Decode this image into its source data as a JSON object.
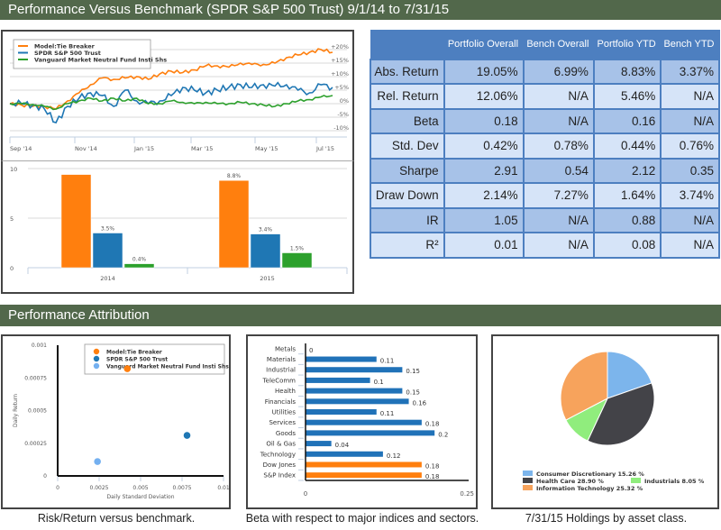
{
  "sections": {
    "performance_title": "Performance Versus Benchmark (SPDR S&P 500 Trust) 9/1/14 to 7/31/15",
    "attribution_title": "Performance Attribution"
  },
  "colors": {
    "header_green": "#52684b",
    "model": "#ff7f0e",
    "spdr": "#1f77b4",
    "vanguard": "#2ca02c",
    "table_header": "#4d7fc0"
  },
  "stats_table": {
    "headers": [
      "",
      "Portfolio Overall",
      "Bench Overall",
      "Portfolio YTD",
      "Bench YTD"
    ],
    "rows": [
      {
        "label": "Abs. Return",
        "values": [
          "19.05%",
          "6.99%",
          "8.83%",
          "3.37%"
        ]
      },
      {
        "label": "Rel. Return",
        "values": [
          "12.06%",
          "N/A",
          "5.46%",
          "N/A"
        ]
      },
      {
        "label": "Beta",
        "values": [
          "0.18",
          "N/A",
          "0.16",
          "N/A"
        ]
      },
      {
        "label": "Std. Dev",
        "values": [
          "0.42%",
          "0.78%",
          "0.44%",
          "0.76%"
        ]
      },
      {
        "label": "Sharpe",
        "values": [
          "2.91",
          "0.54",
          "2.12",
          "0.35"
        ]
      },
      {
        "label": "Draw Down",
        "values": [
          "2.14%",
          "7.27%",
          "1.64%",
          "3.74%"
        ]
      },
      {
        "label": "IR",
        "values": [
          "1.05",
          "N/A",
          "0.88",
          "N/A"
        ]
      },
      {
        "label": "R²",
        "values": [
          "0.01",
          "N/A",
          "0.08",
          "N/A"
        ]
      }
    ]
  },
  "captions": {
    "risk": "Risk/Return versus benchmark.",
    "beta": "Beta with respect to major indices and sectors.",
    "pie": "7/31/15 Holdings by asset class."
  },
  "chart_data": [
    {
      "type": "line",
      "title": "",
      "legend": [
        "Model:Tie Breaker",
        "SPDR S&P 500 Trust",
        "Vanguard Market Neutral Fund Insti Shs"
      ],
      "legend_position": "top-left",
      "x_ticks": [
        "Sep '14",
        "Nov '14",
        "Jan '15",
        "Mar '15",
        "May '15",
        "Jul '15"
      ],
      "y_ticks": [
        "+20%",
        "+15%",
        "+10%",
        "+5%",
        "0%",
        "-5%",
        "-10%"
      ],
      "ylim": [
        -10,
        20
      ],
      "series": [
        {
          "name": "Model:Tie Breaker",
          "values": [
            0,
            -0.5,
            -1,
            -1,
            -2,
            1,
            4,
            7,
            9.5,
            9,
            9.5,
            10,
            9,
            11,
            12,
            11.5,
            12.5,
            14,
            14,
            13.5,
            15,
            14.5,
            14.5,
            15,
            17,
            18,
            19,
            20,
            19
          ]
        },
        {
          "name": "SPDR S&P 500 Trust",
          "values": [
            0,
            0,
            -0.5,
            -2,
            -7,
            -1,
            2,
            4,
            3,
            -1,
            5,
            1,
            0,
            1,
            3,
            6,
            5,
            4,
            5,
            6,
            7,
            6,
            7,
            6.5,
            7,
            5,
            4,
            7,
            6
          ]
        },
        {
          "name": "Vanguard Market Neutral Fund Insti Shs",
          "values": [
            0,
            0,
            -0.3,
            -1,
            -2,
            0,
            1,
            2,
            1,
            2,
            1,
            2,
            0,
            0,
            1,
            0.5,
            0,
            0.5,
            0,
            0,
            0.5,
            0,
            -0.5,
            -1,
            0,
            1,
            1.5,
            2.5,
            3
          ]
        }
      ]
    },
    {
      "type": "bar",
      "categories": [
        "2014",
        "2015"
      ],
      "y_ticks": [
        "0",
        "5",
        "10"
      ],
      "ylim": [
        0,
        10
      ],
      "series": [
        {
          "name": "Model:Tie Breaker",
          "values": [
            9.4,
            8.8
          ],
          "labels": [
            "",
            "8.8%"
          ]
        },
        {
          "name": "SPDR S&P 500 Trust",
          "values": [
            3.5,
            3.4
          ],
          "labels": [
            "3.5%",
            "3.4%"
          ]
        },
        {
          "name": "Vanguard Market Neutral Fund Insti Shs",
          "values": [
            0.4,
            1.5
          ],
          "labels": [
            "0.4%",
            "1.5%"
          ]
        }
      ]
    },
    {
      "type": "scatter",
      "xlabel": "Daily Standard Deviation",
      "ylabel": "Daily Return",
      "xlim": [
        0,
        0.01
      ],
      "ylim": [
        0,
        0.001
      ],
      "x_ticks": [
        "0",
        "0.0025",
        "0.005",
        "0.0075",
        "0.01"
      ],
      "y_ticks": [
        "0",
        "0.00025",
        "0.0005",
        "0.00075",
        "0.001"
      ],
      "legend_position": "top-right",
      "points": [
        {
          "name": "Model:Tie Breaker",
          "x": 0.0042,
          "y": 0.00082,
          "color": "#ff7f0e"
        },
        {
          "name": "SPDR S&P 500 Trust",
          "x": 0.0078,
          "y": 0.00031,
          "color": "#1f77b4"
        },
        {
          "name": "Vanguard Market Neutral Fund Insti Shs",
          "x": 0.0024,
          "y": 0.00011,
          "color": "#74b0f0"
        }
      ]
    },
    {
      "type": "bar",
      "orientation": "horizontal",
      "xlim": [
        0,
        0.25
      ],
      "x_ticks": [
        "0",
        "0.25"
      ],
      "categories": [
        "Metals",
        "Materials",
        "Industrial",
        "TeleComm",
        "Health",
        "Financials",
        "Utilities",
        "Services",
        "Goods",
        "Oil & Gas",
        "Technology",
        "Dow Jones",
        "S&P Index"
      ],
      "values": [
        0,
        0.11,
        0.15,
        0.1,
        0.15,
        0.16,
        0.11,
        0.18,
        0.2,
        0.04,
        0.12,
        0.18,
        0.18
      ],
      "labels": [
        "0",
        "0.11",
        "0.15",
        "0.1",
        "0.15",
        "0.16",
        "0.11",
        "0.18",
        "0.2",
        "0.04",
        "0.12",
        "0.18",
        "0.18"
      ],
      "bar_colors": [
        "#2072b8",
        "#2072b8",
        "#2072b8",
        "#2072b8",
        "#2072b8",
        "#2072b8",
        "#2072b8",
        "#2072b8",
        "#2072b8",
        "#2072b8",
        "#2072b8",
        "#ff7f0e",
        "#ff7f0e"
      ]
    },
    {
      "type": "pie",
      "slices": [
        {
          "name": "Consumer Discretionary",
          "value": 15.26,
          "label": "Consumer Discretionary 15.26 %",
          "color": "#7cb5ec"
        },
        {
          "name": "Health Care",
          "value": 28.9,
          "label": "Health Care 28.90 %",
          "color": "#434348"
        },
        {
          "name": "Industrials",
          "value": 8.05,
          "label": "Industrials 8.05 %",
          "color": "#90ed7d"
        },
        {
          "name": "Information Technology",
          "value": 25.32,
          "label": "Information Technology 25.32 %",
          "color": "#f7a35c"
        }
      ],
      "legend_position": "bottom"
    }
  ]
}
